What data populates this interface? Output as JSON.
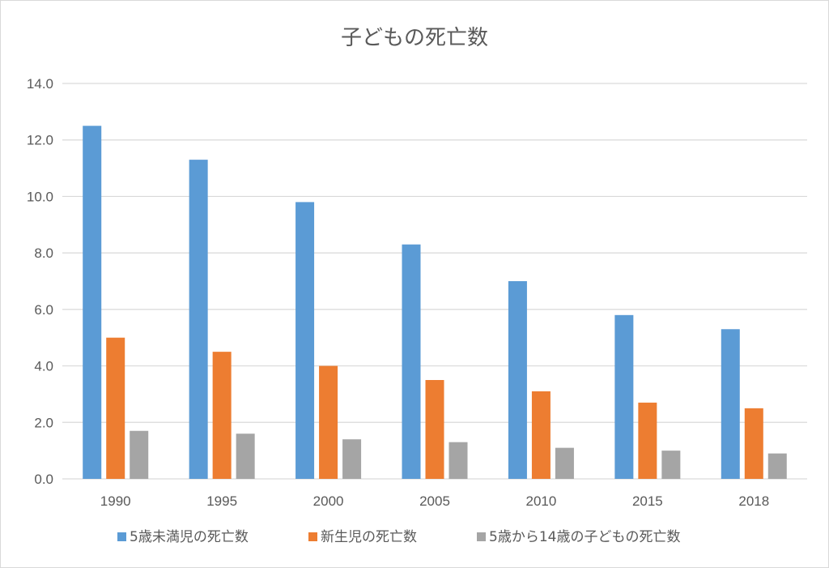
{
  "chart_data": {
    "type": "bar",
    "title": "子どもの死亡数",
    "categories": [
      "1990",
      "1995",
      "2000",
      "2005",
      "2010",
      "2015",
      "2018"
    ],
    "series": [
      {
        "name": "5歳未満児の死亡数",
        "color": "#5b9bd5",
        "values": [
          12.5,
          11.3,
          9.8,
          8.3,
          7.0,
          5.8,
          5.3
        ]
      },
      {
        "name": "新生児の死亡数",
        "color": "#ed7d31",
        "values": [
          5.0,
          4.5,
          4.0,
          3.5,
          3.1,
          2.7,
          2.5
        ]
      },
      {
        "name": "5歳から14歳の子どもの死亡数",
        "color": "#a5a5a5",
        "values": [
          1.7,
          1.6,
          1.4,
          1.3,
          1.1,
          1.0,
          0.9
        ]
      }
    ],
    "yticks": [
      "0.0",
      "2.0",
      "4.0",
      "6.0",
      "8.0",
      "10.0",
      "12.0",
      "14.0"
    ],
    "ylim": [
      0,
      14
    ],
    "xlabel": "",
    "ylabel": "",
    "grid": true,
    "legend_position": "bottom",
    "gridline_color": "#d9d9d9"
  }
}
